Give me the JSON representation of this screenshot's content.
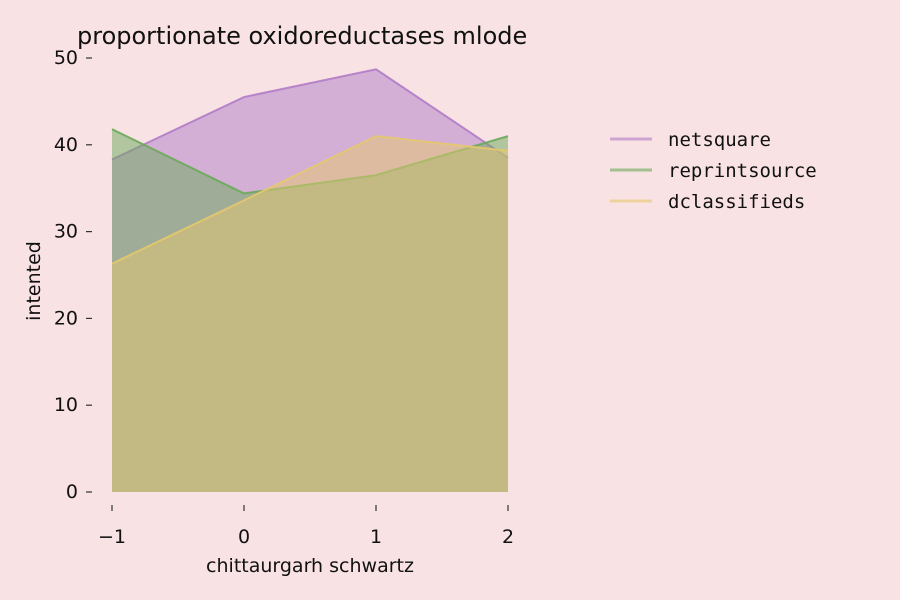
{
  "chart_data": {
    "type": "area",
    "title": "proportionate oxidoreductases mlode",
    "xlabel": "chittaurgarh schwartz",
    "ylabel": "intented",
    "x": [
      -1,
      0,
      1,
      2
    ],
    "xticks": [
      "−1",
      "0",
      "1",
      "2"
    ],
    "yticks": [
      "0",
      "10",
      "20",
      "30",
      "40",
      "50"
    ],
    "xlim": [
      -1,
      2
    ],
    "ylim": [
      0,
      50
    ],
    "grid": false,
    "legend_position": "right",
    "series": [
      {
        "name": "netsquare",
        "values": [
          38.3,
          45.5,
          48.7,
          38.5
        ],
        "color": "#b07cc6"
      },
      {
        "name": "reprintsource",
        "values": [
          41.8,
          34.4,
          36.5,
          41.0
        ],
        "color": "#6aaa5a"
      },
      {
        "name": "dclassifieds",
        "values": [
          26.3,
          33.6,
          41.0,
          39.3
        ],
        "color": "#e6c86e"
      }
    ]
  }
}
